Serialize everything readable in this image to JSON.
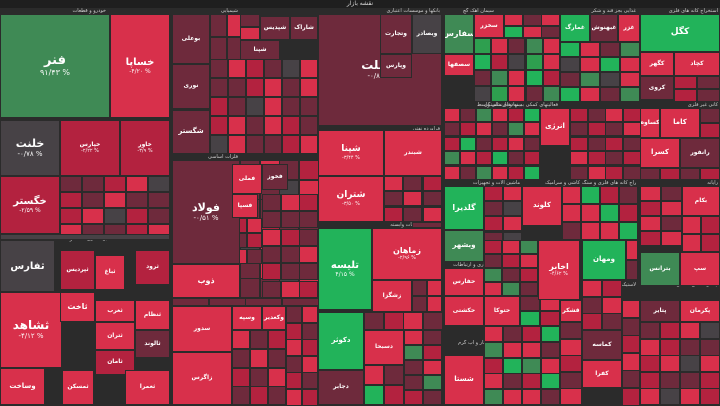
{
  "header": {
    "title": "نقشه بازار"
  },
  "colors": {
    "dark_red": "#6e2a3c",
    "red": "#b3223f",
    "bright_red": "#d8304b",
    "neutral": "#474246",
    "light_green": "#3f8a55",
    "green": "#2e9f4f",
    "bright_green": "#22b35a",
    "background": "#2b2b2b"
  },
  "sectors": [
    {
      "label": "خودرو و قطعات"
    },
    {
      "label": "شیمیایی"
    },
    {
      "label": "بانکها و موسسات اعتباری"
    },
    {
      "label": "سیمان آهک گچ"
    },
    {
      "label": "غذایی بجز قند و شکر"
    },
    {
      "label": "استخراج کانه های فلزی"
    },
    {
      "label": "فلزات اساسی"
    },
    {
      "label": "فراورده نفتی"
    },
    {
      "label": "بیمه و بازنشستگی"
    },
    {
      "label": "کانی غیر فلزی"
    },
    {
      "label": "فعالیتهای کمکی به نهادهای مالی واسط"
    },
    {
      "label": "رایانه"
    },
    {
      "label": "ماشین آلات و تجهیزات"
    },
    {
      "label": "کاشی و سرامیک"
    },
    {
      "label": "استخراج کانه های فلزی و سنگ"
    },
    {
      "label": "انبوه سازی املاک و مستغلات"
    },
    {
      "label": "زراعت و خدمات وابسته"
    },
    {
      "label": "مخابرات"
    },
    {
      "label": "محصولات چوبی"
    },
    {
      "label": "دارویی"
    },
    {
      "label": "حمل و نقل انبارداری و ارتباطات"
    },
    {
      "label": "محصولات کاغذی"
    },
    {
      "label": "محصولات فلزی"
    },
    {
      "label": "قند و شکر"
    },
    {
      "label": "لاستیک و پلاستیک"
    },
    {
      "label": "چند رشته ای صنعتی"
    },
    {
      "label": "عرضه برق گاز بخار و آب گرم"
    },
    {
      "label": "خدمات فنی و مهندسی"
    }
  ],
  "tiles": [
    {
      "symbol": "فنر",
      "change": "۹۱/۴۳ %"
    },
    {
      "symbol": "خساپا",
      "change": "-۴/۲۰ %"
    },
    {
      "symbol": "خودرو",
      "change": ""
    },
    {
      "symbol": "خلنت",
      "change": "-۰/۷۸ %"
    },
    {
      "symbol": "خپارس",
      "change": "-۲/۲۲ %"
    },
    {
      "symbol": "خاور",
      "change": "-۳/۹ %"
    },
    {
      "symbol": "خگستر",
      "change": "-۲/۵۹ %"
    },
    {
      "symbol": "ثفارس",
      "change": ""
    },
    {
      "symbol": "ثشاهد",
      "change": "-۴/۱۲ %"
    },
    {
      "symbol": "ثنوسا",
      "change": ""
    },
    {
      "symbol": "ثاخت",
      "change": ""
    },
    {
      "symbol": "وساخت",
      "change": ""
    },
    {
      "symbol": "ثتران",
      "change": ""
    },
    {
      "symbol": "ثامان",
      "change": ""
    },
    {
      "symbol": "ثمسکن",
      "change": ""
    },
    {
      "symbol": "ثباغ",
      "change": ""
    },
    {
      "symbol": "ثپردیس",
      "change": ""
    },
    {
      "symbol": "ثرود",
      "change": ""
    },
    {
      "symbol": "ثغرب",
      "change": ""
    },
    {
      "symbol": "ثنظام",
      "change": ""
    },
    {
      "symbol": "ثالوند",
      "change": ""
    },
    {
      "symbol": "ثعمرا",
      "change": ""
    },
    {
      "symbol": "ثاصفا",
      "change": ""
    },
    {
      "symbol": "ثجنوب",
      "change": ""
    },
    {
      "symbol": "بوعلی",
      "change": ""
    },
    {
      "symbol": "نوری",
      "change": ""
    },
    {
      "symbol": "شگستر",
      "change": ""
    },
    {
      "symbol": "شپنا",
      "change": ""
    },
    {
      "symbol": "شپدیس",
      "change": ""
    },
    {
      "symbol": "شاراک",
      "change": ""
    },
    {
      "symbol": "فولاد",
      "change": "-۰/۵۱ %"
    },
    {
      "symbol": "فملی",
      "change": ""
    },
    {
      "symbol": "ذوب",
      "change": ""
    },
    {
      "symbol": "فخوز",
      "change": ""
    },
    {
      "symbol": "فسپا",
      "change": ""
    },
    {
      "symbol": "وبملت",
      "change": "-۰/۸۵ %"
    },
    {
      "symbol": "وتجارت",
      "change": ""
    },
    {
      "symbol": "وبصادر",
      "change": ""
    },
    {
      "symbol": "وپارس",
      "change": ""
    },
    {
      "symbol": "شپنا",
      "change": "-۳/۴۴ %"
    },
    {
      "symbol": "شتران",
      "change": "-۳/۵۰ %"
    },
    {
      "symbol": "شبندر",
      "change": ""
    },
    {
      "symbol": "تلیسه",
      "change": "۴/۱۵ %"
    },
    {
      "symbol": "زماهان",
      "change": "-۲/۹۶ %"
    },
    {
      "symbol": "زشگزا",
      "change": ""
    },
    {
      "symbol": "سفارس",
      "change": ""
    },
    {
      "symbol": "سصفها",
      "change": ""
    },
    {
      "symbol": "سخزر",
      "change": ""
    },
    {
      "symbol": "غبهنوش",
      "change": ""
    },
    {
      "symbol": "غزر",
      "change": ""
    },
    {
      "symbol": "غمارگ",
      "change": ""
    },
    {
      "symbol": "کگل",
      "change": ""
    },
    {
      "symbol": "کچاد",
      "change": ""
    },
    {
      "symbol": "کگهر",
      "change": ""
    },
    {
      "symbol": "کروی",
      "change": ""
    },
    {
      "symbol": "کاما",
      "change": ""
    },
    {
      "symbol": "کساوه",
      "change": ""
    },
    {
      "symbol": "گلدیرا",
      "change": ""
    },
    {
      "symbol": "کلوند",
      "change": ""
    },
    {
      "symbol": "اخابر",
      "change": "-۴/۶۲ %"
    },
    {
      "symbol": "ومهان",
      "change": ""
    },
    {
      "symbol": "وبشهر",
      "change": ""
    },
    {
      "symbol": "حفارس",
      "change": ""
    },
    {
      "symbol": "حکشتی",
      "change": ""
    },
    {
      "symbol": "حتوکا",
      "change": ""
    },
    {
      "symbol": "انرژی",
      "change": ""
    },
    {
      "symbol": "کسرا",
      "change": ""
    },
    {
      "symbol": "رانفور",
      "change": ""
    },
    {
      "symbol": "دکوثر",
      "change": ""
    },
    {
      "symbol": "دجابر",
      "change": ""
    },
    {
      "symbol": "دسبحا",
      "change": ""
    },
    {
      "symbol": "شستا",
      "change": ""
    },
    {
      "symbol": "وسپه",
      "change": ""
    },
    {
      "symbol": "سدور",
      "change": ""
    },
    {
      "symbol": "وکغدیر",
      "change": ""
    },
    {
      "symbol": "کماسه",
      "change": ""
    },
    {
      "symbol": "کفرا",
      "change": ""
    },
    {
      "symbol": "قشکر",
      "change": ""
    },
    {
      "symbol": "پتایر",
      "change": ""
    },
    {
      "symbol": "پکرمان",
      "change": ""
    },
    {
      "symbol": "سپ",
      "change": ""
    },
    {
      "symbol": "بترانس",
      "change": ""
    },
    {
      "symbol": "بکام",
      "change": ""
    },
    {
      "symbol": "زاگرس",
      "change": ""
    }
  ]
}
